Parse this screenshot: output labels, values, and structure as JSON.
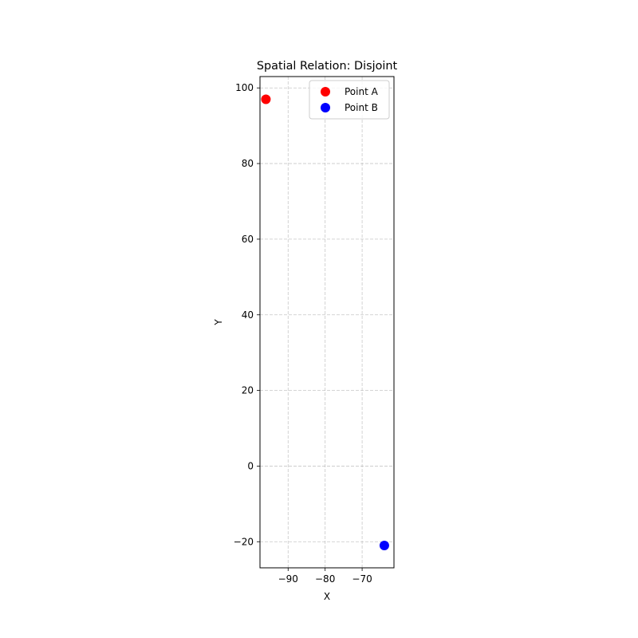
{
  "chart_data": {
    "type": "scatter",
    "title": "Spatial Relation: Disjoint",
    "xlabel": "X",
    "ylabel": "Y",
    "xlim": [
      -97.6,
      -61.4
    ],
    "ylim": [
      -26.9,
      103.0
    ],
    "xticks": [
      -90,
      -80,
      -70
    ],
    "xtick_labels": [
      "−90",
      "−80",
      "−70"
    ],
    "yticks": [
      -20,
      0,
      20,
      40,
      60,
      80,
      100
    ],
    "ytick_labels": [
      "−20",
      "0",
      "20",
      "40",
      "60",
      "80",
      "100"
    ],
    "grid": true,
    "legend_position": "top-right",
    "series": [
      {
        "name": "Point A",
        "color": "#ff0000",
        "points": [
          {
            "x": -96.0,
            "y": 97.0
          }
        ]
      },
      {
        "name": "Point B",
        "color": "#0000ff",
        "points": [
          {
            "x": -64.0,
            "y": -21.0
          }
        ]
      }
    ]
  }
}
